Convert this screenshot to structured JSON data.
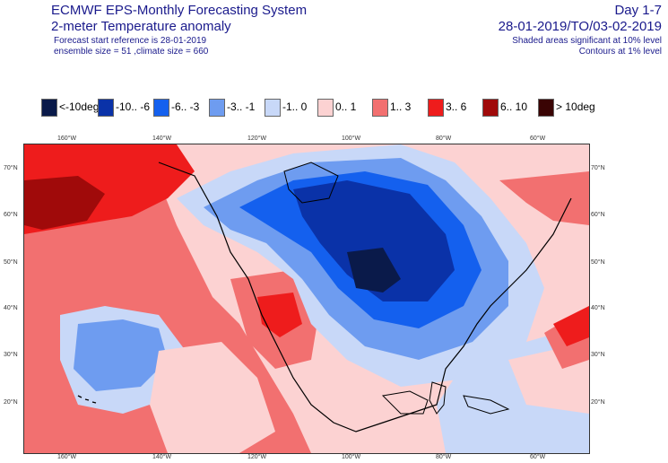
{
  "header": {
    "title": "ECMWF EPS-Monthly Forecasting System",
    "subtitle": "2-meter Temperature anomaly",
    "reference": "Forecast start reference is 28-01-2019",
    "ensemble": "ensemble size = 51  ,climate size = 660",
    "day_range": "Day 1-7",
    "date_range": "28-01-2019/TO/03-02-2019",
    "shading_note": "Shaded areas significant at 10% level",
    "contour_note": "Contours at 1% level"
  },
  "legend": [
    {
      "label": "<-10deg",
      "color": "#0a1a4a"
    },
    {
      "label": "-10.. -6",
      "color": "#0a32a8"
    },
    {
      "label": "-6.. -3",
      "color": "#1460ee"
    },
    {
      "label": "-3.. -1",
      "color": "#6e9cf0"
    },
    {
      "label": "-1..  0",
      "color": "#c8d8f8"
    },
    {
      "label": "0..  1",
      "color": "#fcd2d2"
    },
    {
      "label": "1..  3",
      "color": "#f27070"
    },
    {
      "label": "3..  6",
      "color": "#ee1c1c"
    },
    {
      "label": "6.. 10",
      "color": "#a00a0a"
    },
    {
      "label": "> 10deg",
      "color": "#3a0404"
    }
  ],
  "axes": {
    "lon_top": [
      "160°W",
      "140°W",
      "120°W",
      "100°W",
      "80°W",
      "60°W"
    ],
    "lon_bottom": [
      "160°W",
      "140°W",
      "120°W",
      "100°W",
      "80°W",
      "60°W"
    ],
    "lat_left": [
      "70°N",
      "60°N",
      "50°N",
      "40°N",
      "30°N",
      "20°N"
    ],
    "lat_right": [
      "70°N",
      "60°N",
      "50°N",
      "40°N",
      "30°N",
      "20°N"
    ]
  }
}
